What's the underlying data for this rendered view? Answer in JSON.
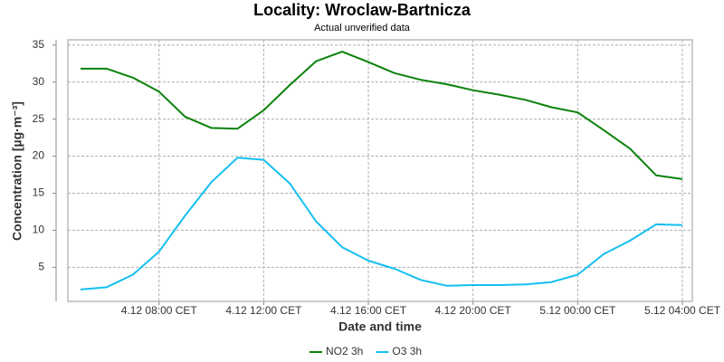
{
  "chart_data": {
    "type": "line",
    "title": "Locality: Wroclaw-Bartnicza",
    "subtitle": "Actual unverified data",
    "x_label": "Date and time",
    "y_label": "Concentration [µg·m⁻³]",
    "categories": [
      null,
      null,
      null,
      "4.12 08:00 CET",
      null,
      null,
      null,
      "4.12 12:00 CET",
      null,
      null,
      null,
      "4.12 16:00 CET",
      null,
      null,
      null,
      "4.12 20:00 CET",
      null,
      null,
      null,
      "5.12 00:00 CET",
      null,
      null,
      null,
      "5.12 04:00 CET"
    ],
    "series": [
      {
        "name": "NO2 3h",
        "color": "#0a820a",
        "values": [
          31.8,
          31.8,
          30.6,
          28.7,
          25.3,
          23.8,
          23.7,
          26.2,
          29.6,
          32.8,
          34.1,
          32.7,
          31.2,
          30.3,
          29.7,
          28.9,
          28.3,
          27.6,
          26.6,
          25.9,
          23.5,
          21.0,
          17.4,
          16.9
        ]
      },
      {
        "name": "O3 3h",
        "color": "#14bff0",
        "values": [
          2.0,
          2.3,
          4.0,
          7.1,
          12.0,
          16.5,
          19.8,
          19.5,
          16.3,
          11.2,
          7.7,
          5.9,
          4.8,
          3.3,
          2.5,
          2.6,
          2.6,
          2.7,
          3.0,
          4.0,
          6.8,
          8.6,
          10.8,
          10.7
        ]
      }
    ],
    "ylim": [
      0.4,
      35.7
    ],
    "yticks": [
      5,
      10,
      15,
      20,
      25,
      30,
      35
    ],
    "grid": true,
    "legend": "bottom"
  }
}
